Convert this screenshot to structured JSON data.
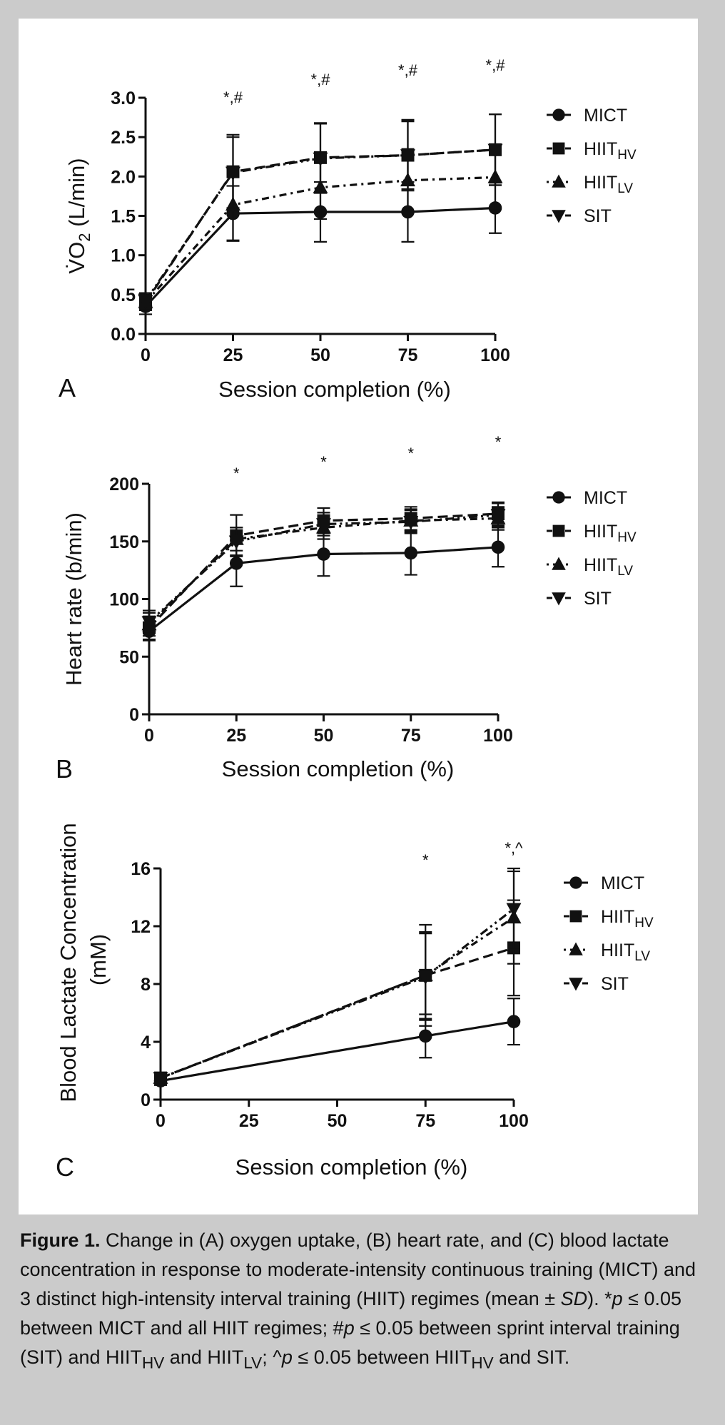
{
  "chart_data": [
    {
      "panel": "A",
      "type": "line",
      "xlabel": "Session completion (%)",
      "ylabel_main": "V̇O",
      "ylabel_sub": "2",
      "ylabel_unit": " (L/min)",
      "x": [
        0,
        25,
        50,
        75,
        100
      ],
      "x_ticks": [
        "0",
        "25",
        "50",
        "75",
        "100"
      ],
      "y_ticks": [
        "0.0",
        "0.5",
        "1.0",
        "1.5",
        "2.0",
        "2.5",
        "3.0"
      ],
      "ylim": [
        0,
        3.0
      ],
      "series": [
        {
          "name": "MICT",
          "marker": "circle",
          "dash": "solid",
          "values": [
            0.35,
            1.53,
            1.55,
            1.55,
            1.6
          ],
          "sd": [
            0.1,
            0.35,
            0.38,
            0.38,
            0.32
          ]
        },
        {
          "name": "HIIT",
          "name_sub": "HV",
          "marker": "square",
          "dash": "dashed",
          "values": [
            0.4,
            2.06,
            2.24,
            2.27,
            2.34
          ],
          "sd": [
            0.1,
            0.47,
            0.44,
            0.45,
            0.45
          ]
        },
        {
          "name": "HIIT",
          "name_sub": "LV",
          "marker": "triangle-up",
          "dash": "dashdot",
          "values": [
            0.4,
            1.64,
            1.86,
            1.95,
            1.99
          ],
          "sd": [
            0.1,
            0.45,
            0.4,
            0.4,
            0.4
          ]
        },
        {
          "name": "SIT",
          "marker": "triangle-down",
          "dash": "dashdotdot",
          "values": [
            0.42,
            2.05,
            2.23,
            2.27,
            2.34
          ],
          "sd": [
            0.1,
            0.45,
            0.44,
            0.43,
            0.45
          ]
        }
      ],
      "significance": [
        {
          "x": 25,
          "label": "*,#"
        },
        {
          "x": 50,
          "label": "*,#"
        },
        {
          "x": 75,
          "label": "*,#"
        },
        {
          "x": 100,
          "label": "*,#"
        }
      ],
      "legend_position": "right"
    },
    {
      "panel": "B",
      "type": "line",
      "xlabel": "Session completion (%)",
      "ylabel_main": "Heart rate (b/min)",
      "x": [
        0,
        25,
        50,
        75,
        100
      ],
      "x_ticks": [
        "0",
        "25",
        "50",
        "75",
        "100"
      ],
      "y_ticks": [
        "0",
        "50",
        "100",
        "150",
        "200"
      ],
      "ylim": [
        0,
        200
      ],
      "series": [
        {
          "name": "MICT",
          "marker": "circle",
          "dash": "solid",
          "values": [
            72,
            131,
            139,
            140,
            145
          ],
          "sd": [
            8,
            20,
            19,
            19,
            17
          ]
        },
        {
          "name": "HIIT",
          "name_sub": "HV",
          "marker": "square",
          "dash": "dashed",
          "values": [
            75,
            155,
            168,
            170,
            174
          ],
          "sd": [
            10,
            18,
            11,
            10,
            10
          ]
        },
        {
          "name": "HIIT",
          "name_sub": "LV",
          "marker": "triangle-up",
          "dash": "dashdot",
          "values": [
            78,
            152,
            162,
            168,
            170
          ],
          "sd": [
            10,
            10,
            10,
            10,
            10
          ]
        },
        {
          "name": "SIT",
          "marker": "triangle-down",
          "dash": "dashdotdot",
          "values": [
            80,
            150,
            165,
            167,
            173
          ],
          "sd": [
            10,
            12,
            10,
            10,
            10
          ]
        }
      ],
      "significance": [
        {
          "x": 25,
          "label": "*"
        },
        {
          "x": 50,
          "label": "*"
        },
        {
          "x": 75,
          "label": "*"
        },
        {
          "x": 100,
          "label": "*"
        }
      ],
      "legend_position": "right"
    },
    {
      "panel": "C",
      "type": "line",
      "xlabel": "Session completion (%)",
      "ylabel_main": "Blood Lactate Concentration",
      "ylabel_unit": "(mM)",
      "x": [
        0,
        75,
        100
      ],
      "x_ticks": [
        "0",
        "25",
        "50",
        "75",
        "100"
      ],
      "x_tick_values": [
        0,
        25,
        50,
        75,
        100
      ],
      "y_ticks": [
        "0",
        "4",
        "8",
        "12",
        "16"
      ],
      "ylim": [
        0,
        16
      ],
      "series": [
        {
          "name": "MICT",
          "marker": "circle",
          "dash": "solid",
          "values": [
            1.3,
            4.4,
            5.4
          ],
          "sd": [
            0.3,
            1.5,
            1.6
          ]
        },
        {
          "name": "HIIT",
          "name_sub": "HV",
          "marker": "square",
          "dash": "dashed",
          "values": [
            1.5,
            8.6,
            10.5
          ],
          "sd": [
            0.3,
            3.5,
            3.3
          ]
        },
        {
          "name": "HIIT",
          "name_sub": "LV",
          "marker": "triangle-up",
          "dash": "dashdot",
          "values": [
            1.5,
            8.6,
            12.6
          ],
          "sd": [
            0.3,
            3.0,
            3.2
          ]
        },
        {
          "name": "SIT",
          "marker": "triangle-down",
          "dash": "dashdotdot",
          "values": [
            1.5,
            8.5,
            13.2
          ],
          "sd": [
            0.3,
            3.0,
            2.8
          ]
        }
      ],
      "significance": [
        {
          "x": 75,
          "label": "*"
        },
        {
          "x": 100,
          "label": "*,^"
        }
      ],
      "legend_position": "right"
    }
  ],
  "caption": {
    "title": "Figure 1.",
    "text_1": " Change in (A) oxygen uptake, (B) heart rate, and (C) blood lactate concentration in response to moderate-intensity continuous training (MICT) and 3 distinct high-intensity interval training (HIIT) regimes (mean ± ",
    "sd_italic": "SD",
    "text_2": "). *",
    "p1": "p",
    "text_3": " ≤ 0.05 between MICT and all HIIT regimes; #",
    "p2": "p",
    "text_4": " ≤ 0.05 between sprint interval training (SIT) and HIIT",
    "sub_hv": "HV",
    "text_5": " and HIIT",
    "sub_lv": "LV",
    "text_6": "; ^",
    "p3": "p",
    "text_7": " ≤ 0.05 between HIIT",
    "sub_hv2": "HV",
    "text_8": " and SIT."
  },
  "colors": {
    "background": "#cbcbcb",
    "panel": "#ffffff",
    "ink": "#111111"
  }
}
